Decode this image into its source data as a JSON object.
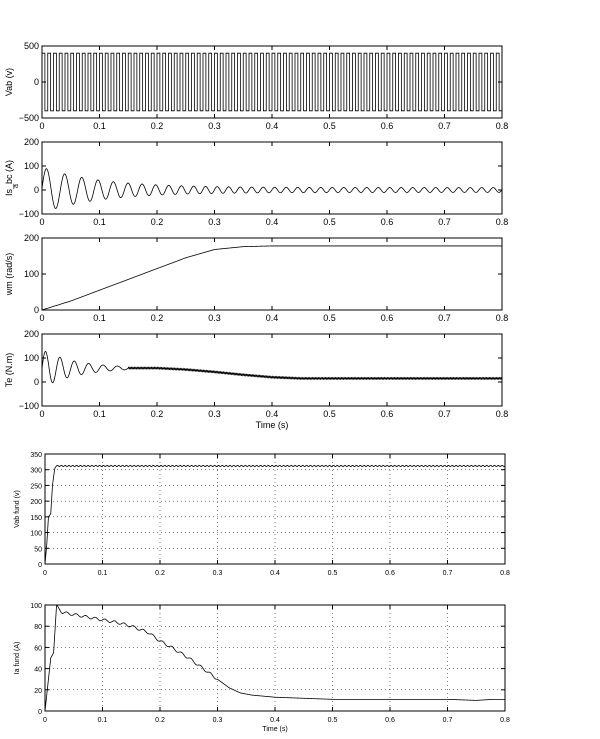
{
  "chart_data": [
    {
      "type": "line",
      "ylabel": "Vab (v)",
      "xlabel": "",
      "xlim": [
        0,
        0.8
      ],
      "ylim": [
        -500,
        500
      ],
      "xticks": [
        "0",
        "0.1",
        "0.2",
        "0.3",
        "0.4",
        "0.5",
        "0.6",
        "0.7",
        "0.8"
      ],
      "yticks": [
        "500",
        "0",
        "−500"
      ],
      "ytick_values": [
        500,
        0,
        -500
      ],
      "grid": false,
      "signal": {
        "kind": "pwm",
        "amplitude": 400,
        "pulses": 80
      }
    },
    {
      "type": "line",
      "ylabel": "Is_bc (A)",
      "ylabel_sub": "a",
      "xlabel": "",
      "xlim": [
        0,
        0.8
      ],
      "ylim": [
        -100,
        200
      ],
      "xticks": [
        "0",
        "0.1",
        "0.2",
        "0.3",
        "0.4",
        "0.5",
        "0.6",
        "0.7",
        "0.8"
      ],
      "yticks": [
        "200",
        "100",
        "0",
        "−100"
      ],
      "ytick_values": [
        200,
        100,
        0,
        -100
      ],
      "grid": false,
      "signal": {
        "kind": "decaying_sine",
        "initial_amplitude": 95,
        "final_amplitude": 10,
        "freq_start": 30,
        "freq_end": 50
      }
    },
    {
      "type": "line",
      "ylabel": "wm (rad/s)",
      "xlabel": "",
      "xlim": [
        0,
        0.8
      ],
      "ylim": [
        0,
        200
      ],
      "xticks": [
        "0",
        "0.1",
        "0.2",
        "0.3",
        "0.4",
        "0.5",
        "0.6",
        "0.7",
        "0.8"
      ],
      "yticks": [
        "200",
        "100",
        "0"
      ],
      "ytick_values": [
        200,
        100,
        0
      ],
      "grid": false,
      "x": [
        0,
        0.02,
        0.05,
        0.1,
        0.15,
        0.2,
        0.25,
        0.3,
        0.35,
        0.4,
        0.5,
        0.6,
        0.7,
        0.8
      ],
      "y": [
        0,
        10,
        25,
        55,
        85,
        115,
        145,
        168,
        176,
        178,
        178,
        178,
        178,
        178
      ]
    },
    {
      "type": "line",
      "ylabel": "Te (N.m)",
      "xlabel": "Time (s)",
      "xlim": [
        0,
        0.8
      ],
      "ylim": [
        -100,
        200
      ],
      "xticks": [
        "0",
        "0.1",
        "0.2",
        "0.3",
        "0.4",
        "0.5",
        "0.6",
        "0.7",
        "0.8"
      ],
      "yticks": [
        "200",
        "100",
        "0",
        "−100"
      ],
      "ytick_values": [
        200,
        100,
        0,
        -100
      ],
      "grid": false,
      "x": [
        0,
        0.15,
        0.2,
        0.25,
        0.3,
        0.35,
        0.4,
        0.45,
        0.5,
        0.8
      ],
      "y": [
        55,
        58,
        58,
        52,
        42,
        30,
        20,
        15,
        15,
        15
      ],
      "signal": {
        "kind": "oscillation",
        "initial_amplitude": 80,
        "decay_until": 0.15
      }
    },
    {
      "type": "line",
      "ylabel": "Vab fund (v)",
      "xlabel": "",
      "xlim": [
        0,
        0.8
      ],
      "ylim": [
        0,
        350
      ],
      "xticks": [
        "0",
        "0.1",
        "0.2",
        "0.3",
        "0.4",
        "0.5",
        "0.6",
        "0.7",
        "0.8"
      ],
      "yticks": [
        "350",
        "300",
        "250",
        "200",
        "150",
        "100",
        "50",
        "0"
      ],
      "ytick_values": [
        350,
        300,
        250,
        200,
        150,
        100,
        50,
        0
      ],
      "grid": true,
      "x": [
        0,
        0.003,
        0.006,
        0.01,
        0.013,
        0.017,
        0.02,
        0.8
      ],
      "y": [
        0,
        60,
        150,
        160,
        250,
        305,
        312,
        312
      ]
    },
    {
      "type": "line",
      "ylabel": "Ia fund (A)",
      "xlabel": "Time (s)",
      "xlim": [
        0,
        0.8
      ],
      "ylim": [
        0,
        100
      ],
      "xticks": [
        "0",
        "0.1",
        "0.2",
        "0.3",
        "0.4",
        "0.5",
        "0.6",
        "0.7",
        "0.8"
      ],
      "yticks": [
        "100",
        "80",
        "60",
        "40",
        "20",
        "0"
      ],
      "ytick_values": [
        100,
        80,
        60,
        40,
        20,
        0
      ],
      "grid": true,
      "x": [
        0,
        0.005,
        0.01,
        0.015,
        0.02,
        0.03,
        0.05,
        0.07,
        0.1,
        0.13,
        0.15,
        0.18,
        0.2,
        0.22,
        0.25,
        0.28,
        0.3,
        0.32,
        0.34,
        0.36,
        0.4,
        0.45,
        0.5,
        0.6,
        0.7,
        0.75,
        0.78,
        0.8
      ],
      "y": [
        0,
        25,
        50,
        55,
        99,
        93,
        91,
        89,
        86,
        83,
        80,
        74,
        66,
        60,
        50,
        38,
        30,
        22,
        17,
        15,
        13,
        12,
        11,
        11,
        11,
        10,
        11,
        11
      ]
    }
  ]
}
